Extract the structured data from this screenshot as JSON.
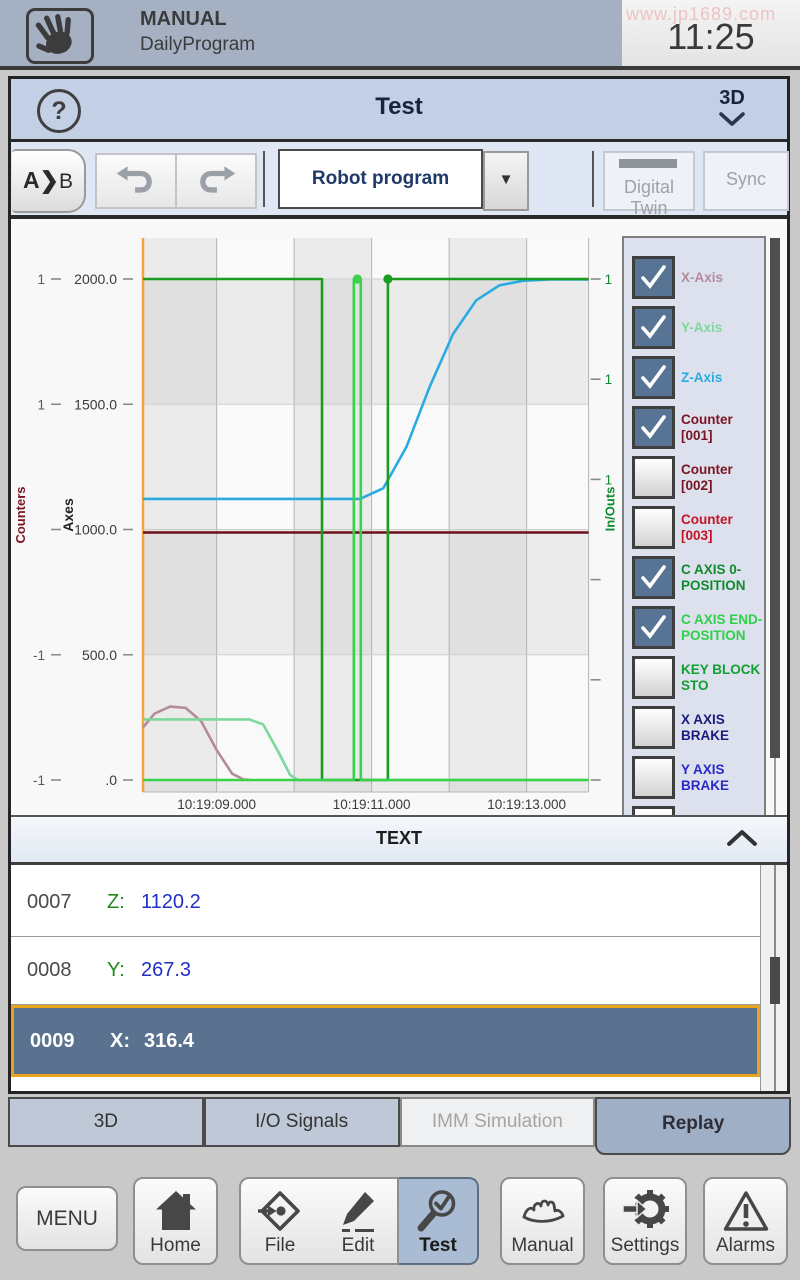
{
  "status_bar": {
    "mode": "MANUAL",
    "program": "DailyProgram",
    "time": "11:25",
    "watermark": "www.jp1689.com"
  },
  "header": {
    "help_label": "?",
    "title": "Test",
    "view_label": "3D"
  },
  "toolbar": {
    "ab_a": "A",
    "ab_chevron": "❯",
    "ab_b": "B",
    "dropdown_value": "Robot program",
    "dropdown_caret": "▼",
    "digital_twin_label": "Digital Twin",
    "sync_label": "Sync"
  },
  "chart_data": {
    "type": "line",
    "x_axis": {
      "unit": "time",
      "domain_s": [
        8.05,
        13.8
      ],
      "gridlines_s": [
        9,
        10,
        11,
        12,
        13
      ],
      "ticks": [
        {
          "s": 9,
          "label": "10:19:09.000"
        },
        {
          "s": 11,
          "label": "10:19:11.000"
        },
        {
          "s": 13,
          "label": "10:19:13.000"
        }
      ]
    },
    "counters_axis": {
      "title": "Counters",
      "color": "#7a1422",
      "ticks": [
        {
          "v": 2000,
          "label": "1"
        },
        {
          "v": 1500,
          "label": "1"
        },
        {
          "v": 1000,
          "label": ""
        },
        {
          "v": 500,
          "label": "-1"
        },
        {
          "v": 0,
          "label": "-1"
        }
      ]
    },
    "axes_axis": {
      "title": "Axes",
      "color": "#222222",
      "domain": [
        0,
        2160
      ],
      "ticks": [
        {
          "v": 2000,
          "label": "2000.0"
        },
        {
          "v": 1500,
          "label": "1500.0"
        },
        {
          "v": 1000,
          "label": "1000.0"
        },
        {
          "v": 500,
          "label": "500.0"
        },
        {
          "v": 0,
          "label": ".0"
        }
      ]
    },
    "io_axis": {
      "title": "In/Outs",
      "color": "#118a2e",
      "ticks": [
        {
          "v": 2000,
          "label": "1"
        },
        {
          "v": 1600,
          "label": "1"
        },
        {
          "v": 1200,
          "label": "1"
        },
        {
          "v": 800,
          "label": ""
        },
        {
          "v": 400,
          "label": ""
        },
        {
          "v": 0,
          "label": ""
        }
      ]
    },
    "cursor": {
      "s": 8.05,
      "color": "#f2a73d"
    },
    "series": [
      {
        "name": "X-Axis",
        "color": "#b48b9b",
        "axis": "axes",
        "points": [
          [
            8.05,
            210
          ],
          [
            8.2,
            265
          ],
          [
            8.4,
            293
          ],
          [
            8.6,
            288
          ],
          [
            8.8,
            235
          ],
          [
            9.0,
            120
          ],
          [
            9.2,
            25
          ],
          [
            9.35,
            2
          ],
          [
            9.45,
            0
          ]
        ]
      },
      {
        "name": "Y-Axis",
        "color": "#7fd79b",
        "axis": "axes",
        "points": [
          [
            8.05,
            242
          ],
          [
            9.42,
            242
          ],
          [
            9.6,
            222
          ],
          [
            9.8,
            110
          ],
          [
            9.95,
            20
          ],
          [
            10.05,
            0
          ],
          [
            13.8,
            0
          ]
        ]
      },
      {
        "name": "Z-Axis",
        "color": "#29abe2",
        "axis": "axes",
        "points": [
          [
            8.05,
            1122
          ],
          [
            10.85,
            1122
          ],
          [
            11.15,
            1165
          ],
          [
            11.45,
            1330
          ],
          [
            11.75,
            1570
          ],
          [
            12.05,
            1780
          ],
          [
            12.35,
            1915
          ],
          [
            12.65,
            1975
          ],
          [
            12.95,
            1993
          ],
          [
            13.3,
            1998
          ],
          [
            13.8,
            1998
          ]
        ]
      },
      {
        "name": "Counter [001]",
        "color": "#6e1019",
        "axis": "axes",
        "points": [
          [
            8.05,
            988
          ],
          [
            13.8,
            988
          ]
        ]
      },
      {
        "name": "C AXIS 0-POSITION",
        "color": "#1b9c20",
        "axis": "io",
        "points": [
          [
            8.05,
            1
          ],
          [
            10.36,
            1
          ],
          [
            10.36,
            0
          ],
          [
            11.21,
            0
          ],
          [
            11.21,
            1
          ],
          [
            13.8,
            1
          ]
        ],
        "marker": [
          11.21,
          1
        ]
      },
      {
        "name": "C AXIS END-POSITION",
        "color": "#3bd24b",
        "axis": "io",
        "points": [
          [
            8.05,
            0
          ],
          [
            10.77,
            0
          ],
          [
            10.77,
            1
          ],
          [
            10.86,
            1
          ],
          [
            10.86,
            0
          ],
          [
            13.8,
            0
          ]
        ],
        "marker": [
          10.815,
          1
        ]
      }
    ]
  },
  "legend": {
    "items": [
      {
        "label": "X-Axis",
        "color": "#b48b9b",
        "checked": true
      },
      {
        "label": "Y-Axis",
        "color": "#7fd79b",
        "checked": true
      },
      {
        "label": "Z-Axis",
        "color": "#29abe2",
        "checked": true
      },
      {
        "label": "Counter [001]",
        "color": "#7a1422",
        "checked": true
      },
      {
        "label": "Counter [002]",
        "color": "#7a1422",
        "checked": false
      },
      {
        "label": "Counter [003]",
        "color": "#c41226",
        "checked": false
      },
      {
        "label": "C AXIS 0-POSITION",
        "color": "#118a2e",
        "checked": true
      },
      {
        "label": "C AXIS END-POSITION",
        "color": "#2fd04a",
        "checked": true
      },
      {
        "label": "KEY BLOCK STO",
        "color": "#13a033",
        "checked": false
      },
      {
        "label": "X AXIS BRAKE",
        "color": "#1b1b7e",
        "checked": false
      },
      {
        "label": "Y AXIS BRAKE",
        "color": "#2a2ac8",
        "checked": false
      },
      {
        "label": "",
        "color": "#333333",
        "checked": false
      }
    ]
  },
  "text_panel": {
    "title": "TEXT",
    "axis_color": "#1f8a1f",
    "value_color": "#2330c4",
    "rows": [
      {
        "num": "0007",
        "axis": "Z:",
        "value": "1120.2",
        "selected": false
      },
      {
        "num": "0008",
        "axis": "Y:",
        "value": "267.3",
        "selected": false
      },
      {
        "num": "0009",
        "axis": "X:",
        "value": "316.4",
        "selected": true
      }
    ]
  },
  "tabs": [
    {
      "label": "3D",
      "state": "normal"
    },
    {
      "label": "I/O Signals",
      "state": "normal"
    },
    {
      "label": "IMM Simulation",
      "state": "disabled"
    },
    {
      "label": "Replay",
      "state": "active"
    }
  ],
  "nav": [
    {
      "label": "MENU",
      "icon": "none",
      "active": false
    },
    {
      "label": "Home",
      "icon": "home",
      "active": false
    },
    {
      "label": "File",
      "icon": "file",
      "active": false
    },
    {
      "label": "Edit",
      "icon": "edit",
      "active": false
    },
    {
      "label": "Test",
      "icon": "test",
      "active": true
    },
    {
      "label": "Manual",
      "icon": "manual",
      "active": false
    },
    {
      "label": "Settings",
      "icon": "settings",
      "active": false
    },
    {
      "label": "Alarms",
      "icon": "alarms",
      "active": false
    }
  ]
}
